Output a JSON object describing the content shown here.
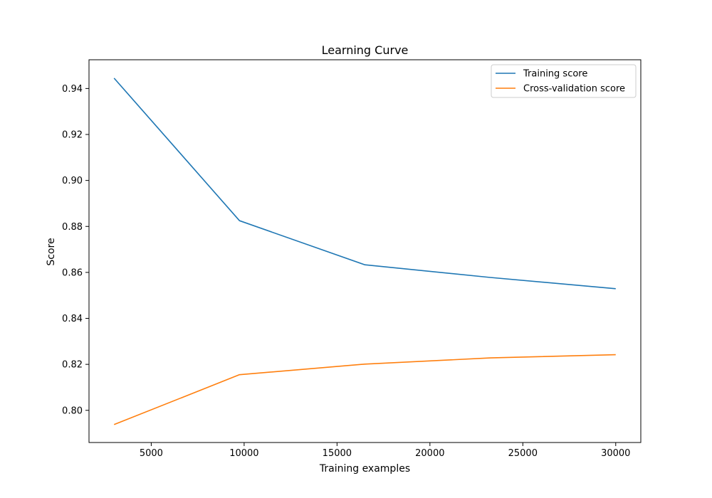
{
  "chart_data": {
    "type": "line",
    "title": "Learning Curve",
    "xlabel": "Training examples",
    "ylabel": "Score",
    "xlim": [
      1650,
      31350
    ],
    "ylim": [
      0.786,
      0.9525
    ],
    "xticks": [
      5000,
      10000,
      15000,
      20000,
      25000,
      30000
    ],
    "xtick_labels": [
      "5000",
      "10000",
      "15000",
      "20000",
      "25000",
      "30000"
    ],
    "yticks": [
      0.8,
      0.82,
      0.84,
      0.86,
      0.88,
      0.9,
      0.92,
      0.94
    ],
    "ytick_labels": [
      "0.80",
      "0.82",
      "0.84",
      "0.86",
      "0.88",
      "0.90",
      "0.92",
      "0.94"
    ],
    "x": [
      3000,
      9750,
      16500,
      23250,
      30000
    ],
    "series": [
      {
        "name": "Training score",
        "color": "#1f77b4",
        "values": [
          0.9445,
          0.8825,
          0.8633,
          0.8578,
          0.8529
        ]
      },
      {
        "name": "Cross-validation score",
        "color": "#ff7f0e",
        "values": [
          0.7938,
          0.8155,
          0.8201,
          0.8228,
          0.8242
        ]
      }
    ],
    "grid": false,
    "legend": "upper right"
  }
}
